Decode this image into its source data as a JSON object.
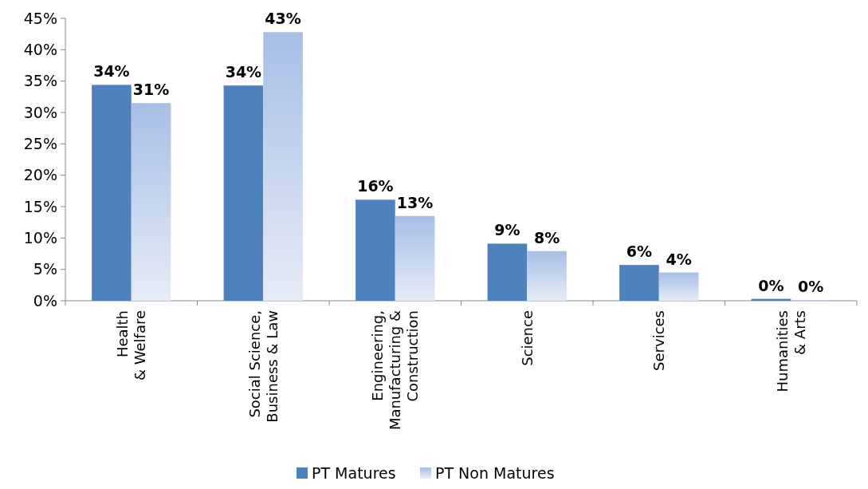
{
  "chart_data": {
    "type": "bar",
    "categories": [
      "Health\n& Welfare",
      "Social Science,\nBusiness & Law",
      "Engineering,\nManufacturing &\nConstruction",
      "Science",
      "Services",
      "Humanities\n& Arts"
    ],
    "series": [
      {
        "name": "PT Matures",
        "color": "#4f81bd",
        "values": [
          34.4,
          34.3,
          16.1,
          9.1,
          5.7,
          0.3
        ],
        "value_labels": [
          "34%",
          "34%",
          "16%",
          "9%",
          "6%",
          "0%"
        ]
      },
      {
        "name": "PT Non Matures",
        "color": "#a7bee6",
        "values": [
          31.5,
          42.8,
          13.5,
          7.9,
          4.5,
          0.1
        ],
        "value_labels": [
          "31%",
          "43%",
          "13%",
          "8%",
          "4%",
          "0%"
        ]
      }
    ],
    "ylim": [
      0,
      45
    ],
    "yticks": [
      {
        "value": 0,
        "label": "0%"
      },
      {
        "value": 5,
        "label": "5%"
      },
      {
        "value": 10,
        "label": "10%"
      },
      {
        "value": 15,
        "label": "15%"
      },
      {
        "value": 20,
        "label": "20%"
      },
      {
        "value": 25,
        "label": "25%"
      },
      {
        "value": 30,
        "label": "30%"
      },
      {
        "value": 35,
        "label": "35%"
      },
      {
        "value": 40,
        "label": "40%"
      },
      {
        "value": 45,
        "label": "45%"
      }
    ],
    "grid": false,
    "legend": "bottom"
  }
}
